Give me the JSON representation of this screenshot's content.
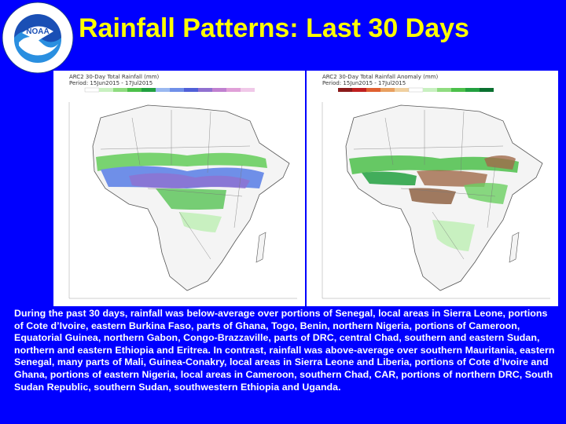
{
  "logo": {
    "ring_text": "NATIONAL OCEANIC AND ATMOSPHERIC ADMINISTRATION",
    "ring_text_bottom": "U.S. DEPARTMENT OF COMMERCE",
    "center_text": "NOAA"
  },
  "title": "Rainfall Patterns: Last 30 Days",
  "maps": {
    "left": {
      "header": "ARC2 30-Day Total Rainfall (mm)",
      "period": "Period: 15Jun2015 - 17Jul2015"
    },
    "right": {
      "header": "ARC2 30-Day Total Rainfall Anomaly (mm)",
      "period": "Period: 15Jun2015 - 17Jul2015"
    }
  },
  "description": "During the past 30 days, rainfall was below-average over portions of Senegal, local areas in Sierra Leone, portions of Cote d’Ivoire, eastern Burkina Faso, parts of Ghana, Togo, Benin, northern Nigeria, portions of Cameroon, Equatorial Guinea, northern Gabon, Congo-Brazzaville, parts of DRC, central Chad, southern and eastern Sudan, northern and eastern Ethiopia and Eritrea. In contrast, rainfall was above-average over southern Mauritania, eastern Senegal, many parts of Mali, Guinea-Conakry, local areas in Sierra Leone and Liberia, portions of Cote d’Ivoire and Ghana, portions of eastern Nigeria, local areas in Cameroon, southern Chad, CAR, portions of northern DRC, South Sudan Republic, southern Sudan, southwestern Ethiopia and Uganda.",
  "colors": {
    "background": "#0000FF",
    "title": "#FFFF00",
    "text": "#FFFFFF"
  }
}
